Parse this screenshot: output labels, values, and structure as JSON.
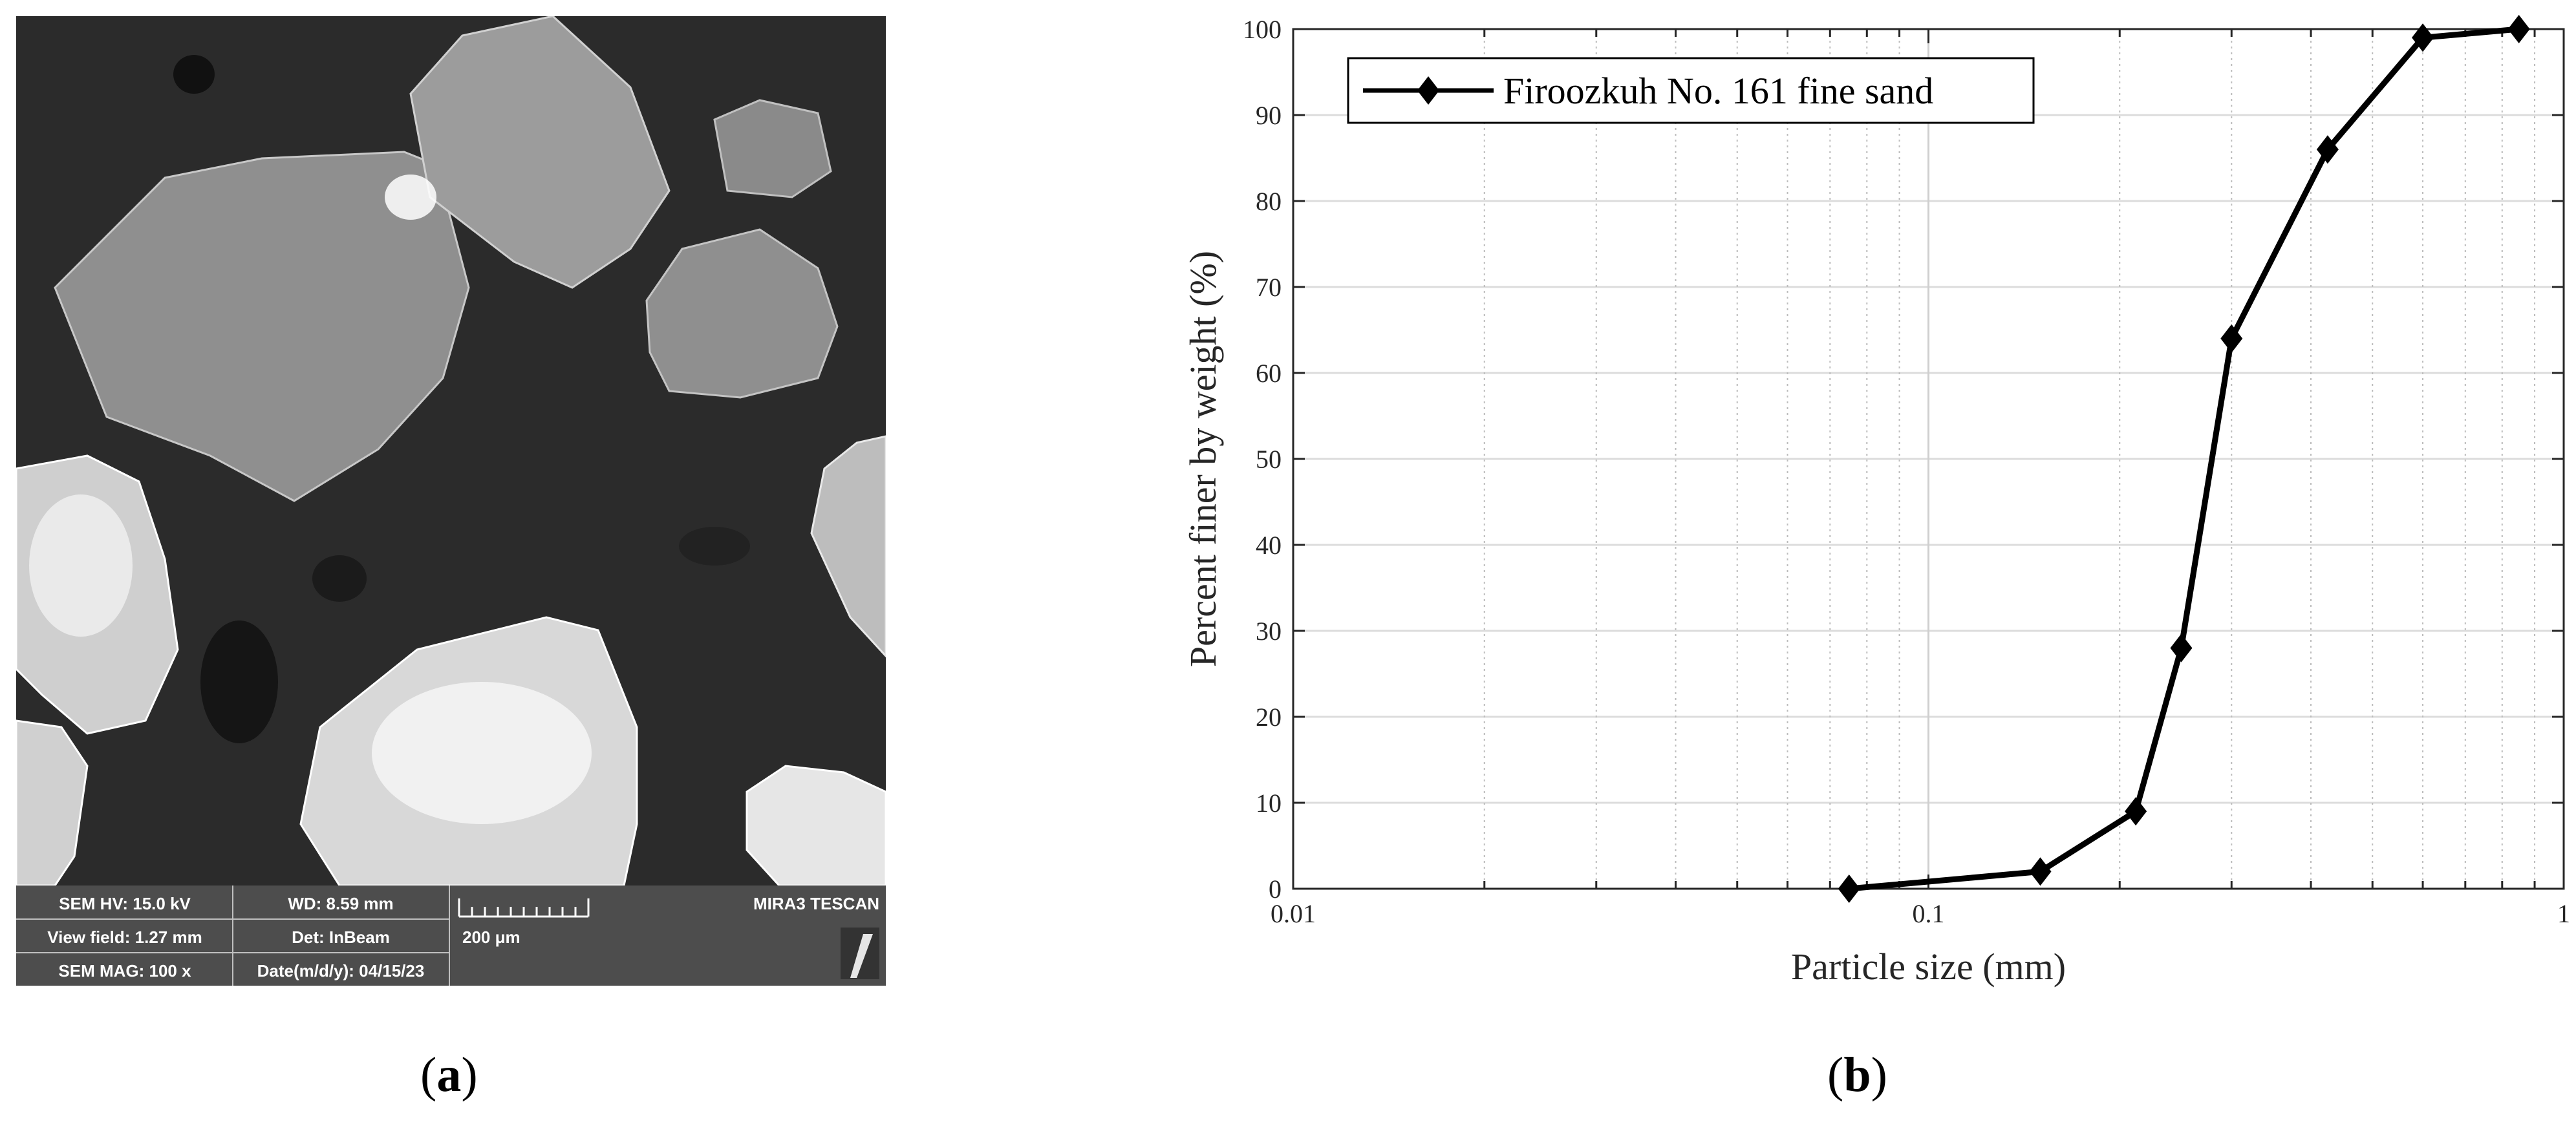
{
  "panels": {
    "a_paren_open": "(",
    "a_letter": "a",
    "a_paren_close": ")",
    "b_paren_open": "(",
    "b_letter": "b",
    "b_paren_close": ")"
  },
  "sem_image": {
    "info_bar": {
      "hv": "SEM HV: 15.0 kV",
      "wd": "WD: 8.59 mm",
      "view_field": "View field: 1.27 mm",
      "detector": "Det: InBeam",
      "scale": "200 μm",
      "mag": "SEM MAG: 100 x",
      "date": "Date(m/d/y): 04/15/23",
      "brand": "MIRA3 TESCAN"
    },
    "colors": {
      "background": "#2b2b2b",
      "info_bar": "#4d4d4d",
      "grain": "#9a9a9a",
      "grain_bright": "#f2f2f2"
    }
  },
  "chart_data": {
    "type": "line",
    "xscale": "log",
    "xlabel": "Particle size (mm)",
    "ylabel": "Percent finer by weight (%)",
    "xlim": [
      0.01,
      1
    ],
    "ylim": [
      0,
      100
    ],
    "xticks": [
      0.01,
      0.1,
      1
    ],
    "xtick_labels": [
      "0.01",
      "0.1",
      "1"
    ],
    "yticks": [
      0,
      10,
      20,
      30,
      40,
      50,
      60,
      70,
      80,
      90,
      100
    ],
    "ytick_labels": [
      "0",
      "10",
      "20",
      "30",
      "40",
      "50",
      "60",
      "70",
      "80",
      "90",
      "100"
    ],
    "grid": true,
    "legend_position": "top-left",
    "line_color": "#000000",
    "marker": "diamond",
    "series": [
      {
        "name": "Firoozkuh No. 161 fine sand",
        "x": [
          0.075,
          0.15,
          0.212,
          0.25,
          0.3,
          0.425,
          0.6,
          0.85
        ],
        "y": [
          0,
          2,
          9,
          28,
          64,
          86,
          99,
          100
        ]
      }
    ]
  }
}
